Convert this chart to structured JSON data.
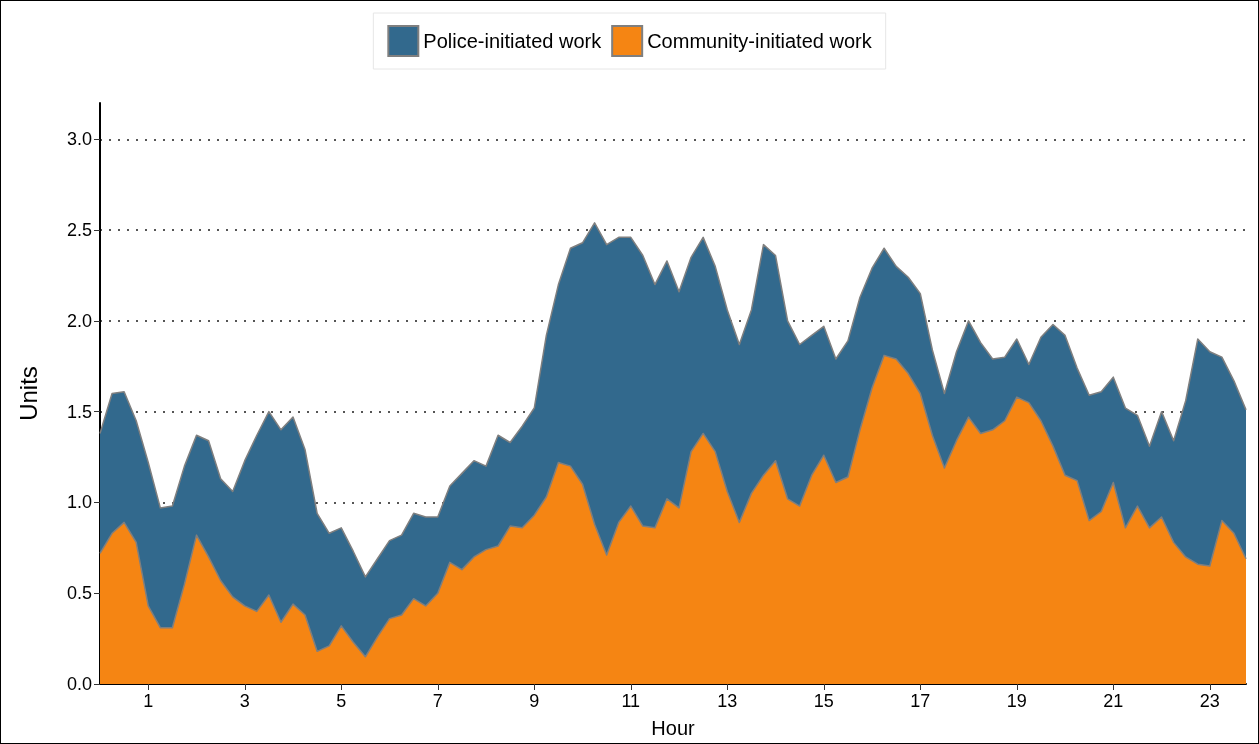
{
  "chart_data": {
    "type": "area",
    "xlabel": "Hour",
    "ylabel": "Units",
    "stacked": true,
    "legend": "top",
    "grid": "y",
    "marker": "none",
    "x": [
      0,
      0.25,
      0.5,
      0.75,
      1,
      1.25,
      1.5,
      1.75,
      2,
      2.25,
      2.5,
      2.75,
      3,
      3.25,
      3.5,
      3.75,
      4,
      4.25,
      4.5,
      4.75,
      5,
      5.25,
      5.5,
      5.75,
      6,
      6.25,
      6.5,
      6.75,
      7,
      7.25,
      7.5,
      7.75,
      8,
      8.25,
      8.5,
      8.75,
      9,
      9.25,
      9.5,
      9.75,
      10,
      10.25,
      10.5,
      10.75,
      11,
      11.25,
      11.5,
      11.75,
      12,
      12.25,
      12.5,
      12.75,
      13,
      13.25,
      13.5,
      13.75,
      14,
      14.25,
      14.5,
      14.75,
      15,
      15.25,
      15.5,
      15.75,
      16,
      16.25,
      16.5,
      16.75,
      17,
      17.25,
      17.5,
      17.75,
      18,
      18.25,
      18.5,
      18.75,
      19,
      19.25,
      19.5,
      19.75,
      20,
      20.25,
      20.5,
      20.75,
      21,
      21.25,
      21.5,
      21.75,
      22,
      22.25,
      22.5,
      22.75,
      23,
      23.25,
      23.5,
      23.75
    ],
    "xlim": [
      0,
      23.75
    ],
    "xticks": [
      1,
      3,
      5,
      7,
      9,
      11,
      13,
      15,
      17,
      19,
      21,
      23
    ],
    "ylim": [
      0,
      3.2
    ],
    "yticks": [
      {
        "value": 0,
        "label": "0.0"
      },
      {
        "value": 0.5,
        "label": "0.5"
      },
      {
        "value": 1,
        "label": "1.0"
      },
      {
        "value": 1.5,
        "label": "1.5"
      },
      {
        "value": 2,
        "label": "2.0"
      },
      {
        "value": 2.5,
        "label": "2.5"
      },
      {
        "value": 3,
        "label": "3.0"
      }
    ],
    "series": [
      {
        "name": "Community-initiated work",
        "color": "#f58513",
        "values": [
          0.72,
          0.83,
          0.89,
          0.78,
          0.43,
          0.31,
          0.31,
          0.55,
          0.82,
          0.7,
          0.57,
          0.48,
          0.43,
          0.4,
          0.49,
          0.34,
          0.44,
          0.38,
          0.18,
          0.21,
          0.32,
          0.23,
          0.15,
          0.26,
          0.36,
          0.38,
          0.47,
          0.43,
          0.5,
          0.67,
          0.63,
          0.7,
          0.74,
          0.76,
          0.87,
          0.86,
          0.93,
          1.03,
          1.22,
          1.2,
          1.1,
          0.88,
          0.71,
          0.89,
          0.98,
          0.87,
          0.86,
          1.02,
          0.97,
          1.28,
          1.38,
          1.28,
          1.06,
          0.89,
          1.05,
          1.15,
          1.23,
          1.02,
          0.98,
          1.15,
          1.26,
          1.11,
          1.14,
          1.4,
          1.63,
          1.81,
          1.79,
          1.71,
          1.6,
          1.37,
          1.19,
          1.34,
          1.47,
          1.38,
          1.4,
          1.45,
          1.58,
          1.55,
          1.45,
          1.31,
          1.15,
          1.12,
          0.9,
          0.95,
          1.11,
          0.86,
          0.98,
          0.86,
          0.92,
          0.78,
          0.7,
          0.66,
          0.65,
          0.9,
          0.83,
          0.69
        ]
      },
      {
        "name": "Police-initiated work",
        "color": "#32698d",
        "values": [
          0.66,
          0.77,
          0.72,
          0.67,
          0.79,
          0.66,
          0.67,
          0.65,
          0.55,
          0.64,
          0.56,
          0.58,
          0.8,
          0.97,
          1.01,
          1.06,
          1.03,
          0.91,
          0.76,
          0.62,
          0.54,
          0.5,
          0.44,
          0.43,
          0.43,
          0.44,
          0.47,
          0.49,
          0.42,
          0.42,
          0.53,
          0.53,
          0.46,
          0.61,
          0.46,
          0.56,
          0.59,
          0.89,
          0.98,
          1.2,
          1.33,
          1.66,
          1.71,
          1.57,
          1.48,
          1.49,
          1.34,
          1.31,
          1.19,
          1.07,
          1.08,
          1.02,
          1.0,
          0.98,
          1.01,
          1.27,
          1.13,
          0.98,
          0.89,
          0.77,
          0.71,
          0.68,
          0.75,
          0.73,
          0.66,
          0.59,
          0.51,
          0.53,
          0.55,
          0.47,
          0.41,
          0.49,
          0.53,
          0.5,
          0.39,
          0.35,
          0.32,
          0.21,
          0.46,
          0.67,
          0.77,
          0.62,
          0.69,
          0.66,
          0.58,
          0.66,
          0.5,
          0.45,
          0.58,
          0.56,
          0.86,
          1.24,
          1.18,
          0.9,
          0.84,
          0.82
        ]
      }
    ]
  }
}
